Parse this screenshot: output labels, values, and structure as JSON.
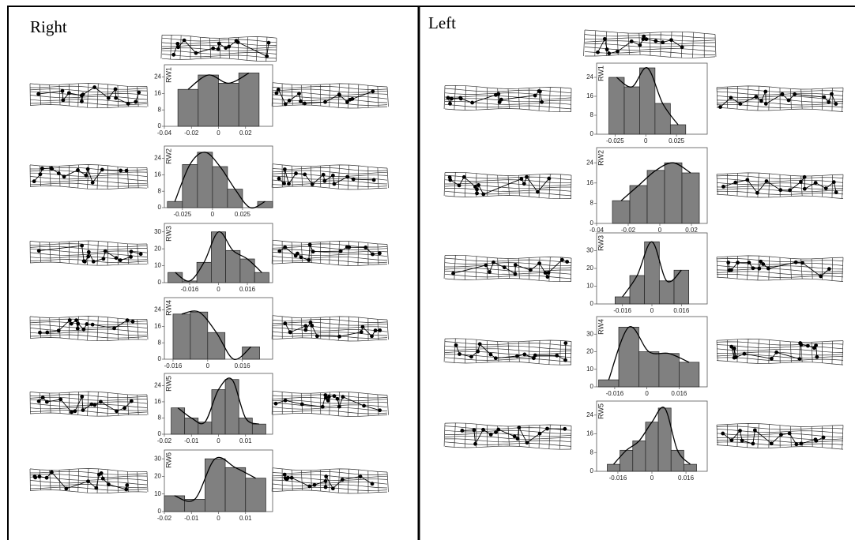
{
  "panel_titles": [
    "Right",
    "Left"
  ],
  "chart_data": [
    {
      "type": "histogram",
      "ylabel": "RW1",
      "bins": [
        -0.03,
        -0.015,
        0,
        0.015,
        0.03
      ],
      "values": [
        18,
        25,
        21,
        26
      ],
      "xlim": [
        -0.04,
        0.04
      ],
      "xticks": [
        -0.04,
        -0.02,
        0,
        0.02
      ],
      "ylim": [
        0,
        30
      ],
      "yticks": [
        0,
        8,
        16,
        24
      ],
      "color": "#808080"
    },
    {
      "type": "histogram",
      "ylabel": "RW2",
      "bins": [
        -0.0375,
        -0.025,
        -0.0125,
        0,
        0.0125,
        0.025,
        0.0375,
        0.05
      ],
      "values": [
        3,
        21,
        27,
        20,
        9,
        0,
        3
      ],
      "xlim": [
        -0.04,
        0.05
      ],
      "xticks": [
        -0.025,
        0,
        0.025
      ],
      "ylim": [
        0,
        30
      ],
      "yticks": [
        0,
        8,
        16,
        24
      ],
      "color": "#808080"
    },
    {
      "type": "histogram",
      "ylabel": "RW3",
      "bins": [
        -0.028,
        -0.02,
        -0.012,
        -0.004,
        0.004,
        0.012,
        0.02,
        0.028
      ],
      "values": [
        6,
        1,
        12,
        30,
        19,
        14,
        6
      ],
      "xlim": [
        -0.03,
        0.03
      ],
      "xticks": [
        -0.016,
        0,
        0.016
      ],
      "ylim": [
        0,
        35
      ],
      "yticks": [
        0,
        10,
        20,
        30
      ],
      "color": "#808080"
    },
    {
      "type": "histogram",
      "ylabel": "RW4",
      "bins": [
        -0.016,
        -0.008,
        0,
        0.008,
        0.016,
        0.024
      ],
      "values": [
        22,
        23,
        13,
        0,
        6
      ],
      "xlim": [
        -0.02,
        0.03
      ],
      "xticks": [
        -0.016,
        0,
        0.016
      ],
      "ylim": [
        0,
        30
      ],
      "yticks": [
        0,
        8,
        16,
        24
      ],
      "color": "#808080"
    },
    {
      "type": "histogram",
      "ylabel": "RW5",
      "bins": [
        -0.0175,
        -0.0125,
        -0.0075,
        -0.0025,
        0.0025,
        0.0075,
        0.0125,
        0.0175
      ],
      "values": [
        13,
        8,
        6,
        22,
        27,
        8,
        5
      ],
      "xlim": [
        -0.02,
        0.02
      ],
      "xticks": [
        -0.02,
        -0.01,
        0,
        0.01
      ],
      "ylim": [
        0,
        30
      ],
      "yticks": [
        0,
        8,
        16,
        24
      ],
      "color": "#808080"
    },
    {
      "type": "histogram",
      "ylabel": "RW6",
      "bins": [
        -0.02,
        -0.0125,
        -0.005,
        0.0025,
        0.01,
        0.0175
      ],
      "values": [
        9,
        7,
        30,
        25,
        19
      ],
      "xlim": [
        -0.02,
        0.02
      ],
      "xticks": [
        -0.02,
        -0.01,
        0,
        0.01
      ],
      "ylim": [
        0,
        35
      ],
      "yticks": [
        0,
        10,
        20,
        30
      ],
      "color": "#808080"
    },
    {
      "type": "histogram",
      "ylabel": "RW1",
      "bins": [
        -0.03,
        -0.0175,
        -0.005,
        0.0075,
        0.02,
        0.0325
      ],
      "values": [
        24,
        20,
        28,
        13,
        4
      ],
      "xlim": [
        -0.04,
        0.05
      ],
      "xticks": [
        -0.025,
        0,
        0.025
      ],
      "ylim": [
        0,
        30
      ],
      "yticks": [
        0,
        8,
        16,
        24
      ],
      "color": "#808080"
    },
    {
      "type": "histogram",
      "ylabel": "RW2",
      "bins": [
        -0.03,
        -0.019,
        -0.008,
        0.003,
        0.014,
        0.025
      ],
      "values": [
        9,
        15,
        21,
        24,
        20
      ],
      "xlim": [
        -0.04,
        0.03
      ],
      "xticks": [
        -0.04,
        -0.02,
        0,
        0.02
      ],
      "ylim": [
        0,
        30
      ],
      "yticks": [
        0,
        8,
        16,
        24
      ],
      "color": "#808080"
    },
    {
      "type": "histogram",
      "ylabel": "RW3",
      "bins": [
        -0.02,
        -0.012,
        -0.004,
        0.004,
        0.012,
        0.02
      ],
      "values": [
        4,
        16,
        35,
        13,
        19
      ],
      "xlim": [
        -0.03,
        0.03
      ],
      "xticks": [
        -0.016,
        0,
        0.016
      ],
      "ylim": [
        0,
        40
      ],
      "yticks": [
        0,
        10,
        20,
        30
      ],
      "color": "#808080"
    },
    {
      "type": "histogram",
      "ylabel": "RW4",
      "bins": [
        -0.024,
        -0.014,
        -0.004,
        0.006,
        0.016,
        0.026
      ],
      "values": [
        4,
        34,
        20,
        19,
        14
      ],
      "xlim": [
        -0.025,
        0.03
      ],
      "xticks": [
        -0.016,
        0,
        0.016
      ],
      "ylim": [
        0,
        40
      ],
      "yticks": [
        0,
        10,
        20,
        30
      ],
      "color": "#808080"
    },
    {
      "type": "histogram",
      "ylabel": "RW5",
      "bins": [
        -0.021,
        -0.015,
        -0.009,
        -0.003,
        0.003,
        0.009,
        0.015,
        0.021
      ],
      "values": [
        3,
        9,
        13,
        21,
        27,
        9,
        3
      ],
      "xlim": [
        -0.026,
        0.026
      ],
      "xticks": [
        -0.016,
        0,
        0.016
      ],
      "ylim": [
        0,
        30
      ],
      "yticks": [
        0,
        8,
        16,
        24
      ],
      "color": "#808080"
    }
  ]
}
